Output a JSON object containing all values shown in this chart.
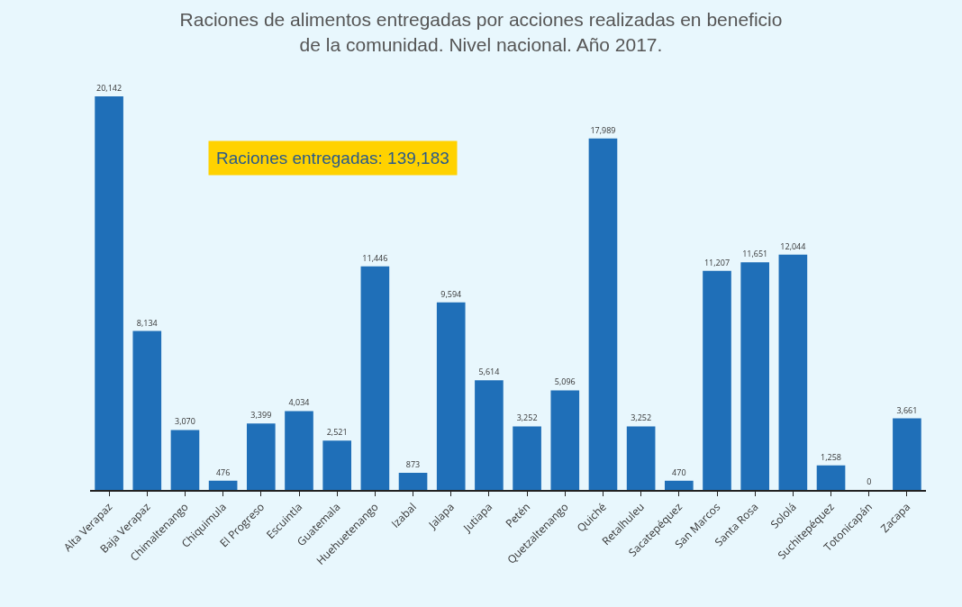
{
  "chart_data": {
    "type": "bar",
    "title": "Raciones de alimentos entregadas por acciones realizadas en beneficio de la comunidad. Nivel nacional. Año 2017.",
    "categories": [
      "Alta Verapaz",
      "Baja Verapaz",
      "Chimaltenango",
      "Chiquimula",
      "El Progreso",
      "Escuintla",
      "Guatemala",
      "Huehuetenango",
      "Izabal",
      "Jalapa",
      "Jutiapa",
      "Petén",
      "Quetzaltenango",
      "Quiché",
      "Retalhuleu",
      "Sacatepéquez",
      "San Marcos",
      "Santa Rosa",
      "Sololá",
      "Suchitepéquez",
      "Totonicapán",
      "Zacapa"
    ],
    "values": [
      20142,
      8134,
      3070,
      476,
      3399,
      4034,
      2521,
      11446,
      873,
      9594,
      5614,
      3252,
      5096,
      17989,
      3252,
      470,
      11207,
      11651,
      12044,
      1258,
      0,
      3661
    ],
    "value_labels": [
      "20,142",
      "8,134",
      "3,070",
      "476",
      "3,399",
      "4,034",
      "2,521",
      "11,446",
      "873",
      "9,594",
      "5,614",
      "3,252",
      "5,096",
      "17,989",
      "3,252",
      "470",
      "11,207",
      "11,651",
      "12,044",
      "1,258",
      "0",
      "3,661"
    ],
    "color": "#1f6fb8",
    "annotations": [
      "Raciones entregadas: 139,183"
    ]
  }
}
